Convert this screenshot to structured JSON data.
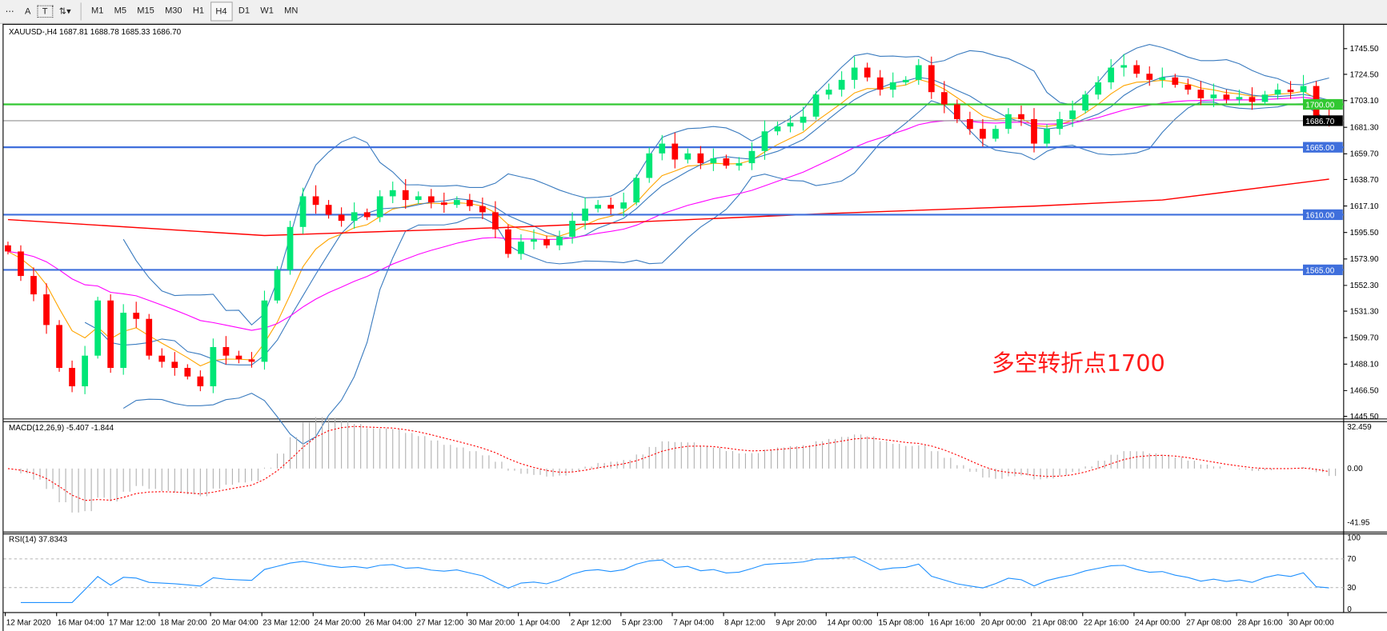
{
  "toolbar": {
    "tools": [
      {
        "name": "separator-tool-icon",
        "glyph": "⋯"
      },
      {
        "name": "text-tool-icon",
        "glyph": "A"
      },
      {
        "name": "text-label-tool-icon",
        "glyph": "T"
      },
      {
        "name": "arrows-tool-icon",
        "glyph": "⇅▾"
      }
    ],
    "timeframes": [
      "M1",
      "M5",
      "M15",
      "M30",
      "H1",
      "H4",
      "D1",
      "W1",
      "MN"
    ],
    "active_timeframe": "H4"
  },
  "chart_data": {
    "type": "candlestick",
    "symbol_line": "XAUUSD-,H4  1687.81 1688.78 1685.33 1686.70",
    "price_ticks": [
      "1745.50",
      "1724.50",
      "1703.10",
      "1681.30",
      "1659.70",
      "1638.70",
      "1617.10",
      "1595.50",
      "1573.90",
      "1552.30",
      "1531.30",
      "1509.70",
      "1488.10",
      "1466.50",
      "1445.50"
    ],
    "ylim": [
      1445.5,
      1745.5
    ],
    "x_labels": [
      "12 Mar 2020",
      "16 Mar 04:00",
      "17 Mar 12:00",
      "18 Mar 20:00",
      "20 Mar 04:00",
      "23 Mar 12:00",
      "24 Mar 20:00",
      "26 Mar 04:00",
      "27 Mar 12:00",
      "30 Mar 20:00",
      "1 Apr 04:00",
      "2 Apr 12:00",
      "5 Apr 23:00",
      "7 Apr 04:00",
      "8 Apr 12:00",
      "9 Apr 20:00",
      "14 Apr 00:00",
      "15 Apr 08:00",
      "16 Apr 16:00",
      "20 Apr 00:00",
      "21 Apr 08:00",
      "22 Apr 16:00",
      "24 Apr 00:00",
      "27 Apr 08:00",
      "28 Apr 16:00",
      "30 Apr 00:00"
    ],
    "closes": [
      1580,
      1560,
      1545,
      1520,
      1485,
      1470,
      1495,
      1540,
      1485,
      1530,
      1525,
      1495,
      1490,
      1485,
      1478,
      1470,
      1502,
      1495,
      1492,
      1490,
      1540,
      1565,
      1600,
      1625,
      1618,
      1610,
      1605,
      1612,
      1608,
      1625,
      1630,
      1622,
      1625,
      1620,
      1618,
      1622,
      1617,
      1612,
      1598,
      1578,
      1588,
      1590,
      1585,
      1592,
      1605,
      1615,
      1618,
      1615,
      1620,
      1640,
      1660,
      1668,
      1655,
      1660,
      1652,
      1656,
      1650,
      1652,
      1662,
      1678,
      1682,
      1685,
      1690,
      1708,
      1712,
      1720,
      1730,
      1722,
      1712,
      1718,
      1720,
      1732,
      1710,
      1700,
      1688,
      1680,
      1672,
      1680,
      1692,
      1688,
      1668,
      1680,
      1688,
      1695,
      1708,
      1718,
      1730,
      1732,
      1725,
      1720,
      1722,
      1716,
      1712,
      1705,
      1708,
      1704,
      1706,
      1702,
      1708,
      1712,
      1710,
      1715,
      1690,
      1686.7
    ],
    "long_ma": [
      [
        0,
        1606
      ],
      [
        20,
        1593
      ],
      [
        40,
        1600
      ],
      [
        64,
        1611
      ],
      [
        80,
        1617
      ],
      [
        90,
        1622
      ],
      [
        103,
        1639
      ]
    ],
    "levels": [
      {
        "price": 1700.0,
        "label": "1700.00",
        "color": "#32c832"
      },
      {
        "price": 1665.0,
        "label": "1665.00",
        "color": "#3f6fdc"
      },
      {
        "price": 1610.0,
        "label": "1610.00",
        "color": "#3f6fdc"
      },
      {
        "price": 1565.0,
        "label": "1565.00",
        "color": "#3f6fdc"
      }
    ],
    "current_price": {
      "price": 1686.7,
      "label": "1686.70"
    },
    "annotation": "多空转折点1700",
    "colors": {
      "bull": "#00e676",
      "bear": "#ff0000",
      "bands": "#3a7bbf",
      "fast_ma": "#ffa500",
      "mid_ma": "#ff00ff",
      "long_ma": "#ff0000",
      "rsi": "#1e90ff",
      "macd_signal": "#ff0000",
      "macd_hist": "#b0b0b0"
    },
    "macd": {
      "label": "MACD(12,26,9) -5.407 -1.844",
      "ticks": [
        "32.459",
        "0.00",
        "-41.95"
      ],
      "ylim": [
        -41.95,
        32.459
      ]
    },
    "rsi": {
      "label": "RSI(14) 37.8343",
      "ticks": [
        "100",
        "70",
        "30",
        "0"
      ],
      "levels": [
        70,
        30
      ]
    }
  }
}
